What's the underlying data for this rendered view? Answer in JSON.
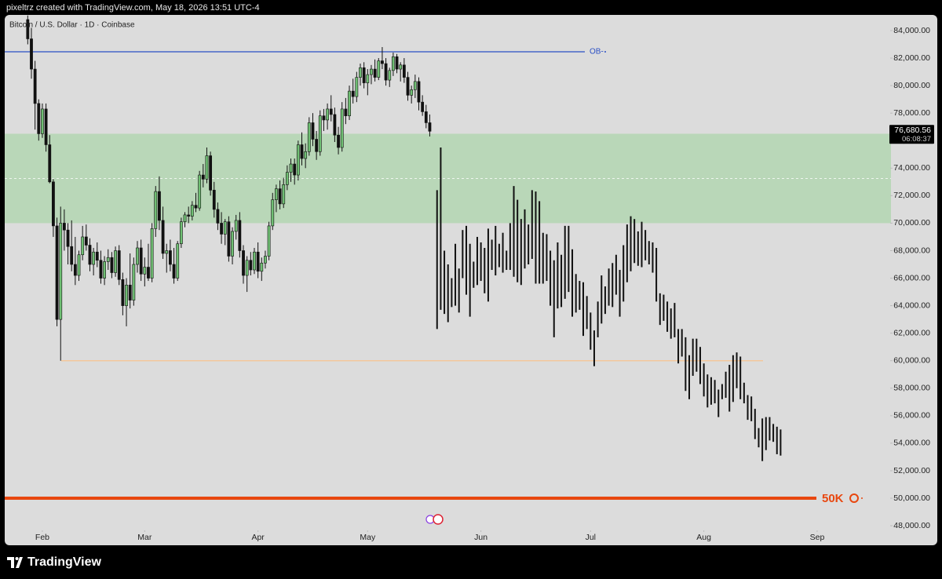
{
  "header": {
    "credit": "pixeltrz created with TradingView.com, May 18, 2026 13:51 UTC-4"
  },
  "chart_data": {
    "type": "candlestick",
    "title": "Bitcoin / U.S. Dollar · 1D · Coinbase",
    "up_color": "#6fbf73",
    "down_color": "#111111",
    "x": [
      -4,
      -3,
      -2,
      -1,
      0,
      1,
      2,
      3,
      4,
      5,
      6,
      7,
      8,
      9,
      10,
      11,
      12,
      13,
      14,
      15,
      16,
      17,
      18,
      19,
      20,
      21,
      22,
      23,
      24,
      25,
      26,
      27,
      28,
      29,
      30,
      31,
      32,
      33,
      34,
      35,
      36,
      37,
      38,
      39,
      40,
      41,
      42,
      43,
      44,
      45,
      46,
      47,
      48,
      49,
      50,
      51,
      52,
      53,
      54,
      55,
      56,
      57,
      58,
      59,
      60,
      61,
      62,
      63,
      64,
      65,
      66,
      67,
      68,
      69,
      70,
      71,
      72,
      73,
      74,
      75,
      76,
      77,
      78,
      79,
      80,
      81,
      82,
      83,
      84,
      85,
      86,
      87,
      88,
      89,
      90,
      91,
      92,
      93,
      94,
      95,
      96,
      97,
      98,
      99,
      100,
      101,
      102,
      103,
      104,
      105,
      106
    ],
    "open": [
      84800,
      83400,
      81200,
      78700,
      76500,
      78300,
      75700,
      73000,
      69800,
      63000,
      70000,
      69500,
      68300,
      67000,
      66200,
      67700,
      69000,
      68400,
      67000,
      67900,
      67300,
      66000,
      67200,
      67500,
      66400,
      68000,
      65900,
      64000,
      65500,
      64400,
      67000,
      68200,
      66300,
      66800,
      66000,
      69600,
      72300,
      70200,
      67800,
      68000,
      67000,
      66000,
      68500,
      70100,
      70600,
      70500,
      71300,
      71100,
      73500,
      73200,
      74900,
      72400,
      71000,
      70000,
      69200,
      70100,
      67600,
      69400,
      70200,
      68000,
      66200,
      67300,
      66600,
      67900,
      66500,
      67100,
      67600,
      69800,
      71700,
      72500,
      71400,
      72800,
      73700,
      74300,
      73500,
      75700,
      74700,
      75200,
      77300,
      76100,
      75200,
      77800,
      77500,
      78300,
      77900,
      76400,
      75500,
      78300,
      77800,
      79600,
      79200,
      80600,
      81300,
      80200,
      80800,
      81200,
      80600,
      81800,
      81600,
      80400,
      81100,
      82100,
      81200,
      81500,
      80600,
      79300,
      79700,
      80300,
      78800,
      78100,
      77300
    ],
    "high": [
      85100,
      84200,
      81800,
      79000,
      78700,
      78700,
      76400,
      73200,
      70400,
      71200,
      71000,
      70000,
      70200,
      69000,
      68000,
      69800,
      69900,
      68900,
      68200,
      68600,
      68000,
      67600,
      68100,
      67900,
      68300,
      68400,
      66400,
      66000,
      67800,
      67500,
      68700,
      68800,
      67500,
      68500,
      70000,
      72700,
      73400,
      71200,
      68500,
      68800,
      68200,
      68700,
      70400,
      70800,
      71200,
      71600,
      72200,
      73800,
      74300,
      75500,
      75200,
      73000,
      71500,
      70800,
      70300,
      70500,
      69700,
      70600,
      70800,
      68400,
      67600,
      67900,
      68200,
      68600,
      67500,
      68000,
      70100,
      72200,
      72800,
      73100,
      73300,
      74200,
      74700,
      74700,
      76000,
      76600,
      75800,
      77700,
      78000,
      76700,
      78200,
      78300,
      78700,
      79300,
      78400,
      77000,
      78800,
      79100,
      80000,
      80500,
      81000,
      81600,
      81700,
      81200,
      81500,
      81900,
      82000,
      82800,
      82000,
      81300,
      82400,
      82300,
      81700,
      82000,
      81000,
      80000,
      80800,
      80600,
      79300,
      78600,
      77900
    ],
    "low": [
      83000,
      80500,
      76800,
      76000,
      76200,
      75200,
      72900,
      69000,
      62500,
      60000,
      68000,
      67000,
      66500,
      65500,
      65800,
      67300,
      68000,
      66500,
      66200,
      66800,
      65600,
      65500,
      66600,
      66000,
      66100,
      65500,
      63300,
      62500,
      63800,
      64000,
      66400,
      65800,
      65400,
      65800,
      65700,
      69000,
      69500,
      67400,
      66400,
      66500,
      65600,
      65800,
      68200,
      69700,
      70000,
      70200,
      70800,
      70900,
      72600,
      72900,
      72000,
      70400,
      69500,
      68500,
      68400,
      67200,
      67000,
      68800,
      67500,
      65600,
      65000,
      66200,
      66300,
      66000,
      65800,
      66700,
      67300,
      69500,
      70800,
      71000,
      71100,
      72400,
      73000,
      72800,
      73100,
      74200,
      74000,
      74900,
      75600,
      74600,
      74900,
      76700,
      76800,
      77400,
      75900,
      75000,
      75200,
      77200,
      77500,
      78700,
      78800,
      80000,
      79800,
      79300,
      80100,
      80300,
      80400,
      81200,
      80000,
      79900,
      80700,
      80900,
      80300,
      80200,
      78900,
      78700,
      79100,
      78200,
      77800,
      76900,
      76300
    ],
    "close": [
      83400,
      81200,
      78700,
      76500,
      78300,
      75700,
      73000,
      69800,
      63000,
      70000,
      69500,
      68300,
      67000,
      66200,
      67700,
      69000,
      68400,
      67000,
      67900,
      67300,
      66000,
      67200,
      67500,
      66400,
      68000,
      65900,
      64000,
      65500,
      64400,
      67000,
      68200,
      66300,
      66800,
      66000,
      69600,
      72300,
      70200,
      67800,
      68000,
      67000,
      66000,
      68500,
      70100,
      70600,
      70500,
      71300,
      71100,
      73500,
      73200,
      74900,
      72400,
      71000,
      70000,
      69200,
      70100,
      67600,
      69400,
      70200,
      68000,
      66200,
      67300,
      66600,
      67900,
      66500,
      67100,
      67600,
      69800,
      71700,
      72500,
      71400,
      72800,
      73700,
      74300,
      73500,
      75700,
      74700,
      75200,
      77300,
      76100,
      75200,
      77800,
      77500,
      78300,
      77900,
      76400,
      75500,
      78300,
      77800,
      79600,
      79200,
      80600,
      81300,
      80200,
      80800,
      81200,
      80600,
      81800,
      81600,
      80400,
      81100,
      82100,
      81200,
      81500,
      80600,
      79300,
      79700,
      80300,
      78800,
      78100,
      77300,
      76680.56
    ],
    "projection": {
      "color": "#111111",
      "x": [
        108,
        109,
        110,
        111,
        112,
        113,
        114,
        115,
        116,
        117,
        118,
        119,
        120,
        121,
        122,
        123,
        124,
        125,
        126,
        127,
        128,
        129,
        130,
        131,
        132,
        133,
        134,
        135,
        136,
        137,
        138,
        139,
        140,
        141,
        142,
        143,
        144,
        145,
        146,
        147,
        148,
        149,
        150,
        151,
        152,
        153,
        154,
        155,
        156,
        157,
        158,
        159,
        160,
        161,
        162,
        163,
        164,
        165,
        166,
        167,
        168,
        169,
        170,
        171,
        172,
        173,
        174,
        175,
        176,
        177,
        178,
        179,
        180,
        181,
        182,
        183,
        184,
        185,
        186,
        187,
        188,
        189,
        190,
        191,
        192,
        193,
        194,
        195,
        196,
        197,
        198,
        199,
        200,
        201,
        202
      ],
      "high": [
        72400,
        75500,
        68000,
        67000,
        66000,
        68500,
        66700,
        69500,
        69800,
        68500,
        67200,
        69000,
        68600,
        68200,
        69600,
        68800,
        69800,
        68500,
        69300,
        68000,
        70000,
        72700,
        71700,
        70300,
        71000,
        69900,
        72400,
        72300,
        71600,
        69300,
        69200,
        68000,
        67300,
        68600,
        67700,
        69800,
        69800,
        68100,
        66300,
        65800,
        65700,
        64700,
        63500,
        62200,
        64300,
        66200,
        65400,
        66700,
        67100,
        67700,
        66600,
        68400,
        69900,
        70500,
        70300,
        69400,
        70100,
        69500,
        68700,
        68600,
        68200,
        64900,
        64800,
        64300,
        63800,
        64200,
        62300,
        62300,
        61700,
        60400,
        61600,
        61600,
        61000,
        59800,
        59000,
        58800,
        58600,
        57900,
        58300,
        59200,
        59700,
        60400,
        60600,
        60300,
        58400,
        57500,
        57400,
        56500,
        55100,
        55800,
        55900,
        55900,
        55400,
        55200,
        55000
      ],
      "low": [
        62300,
        63700,
        63400,
        62800,
        63900,
        64000,
        63500,
        66000,
        64800,
        63200,
        65300,
        65500,
        65800,
        64900,
        64300,
        66600,
        66200,
        66800,
        66400,
        66600,
        66600,
        66100,
        65700,
        65500,
        66700,
        67000,
        67400,
        65600,
        65600,
        65600,
        65800,
        64000,
        61700,
        63800,
        63900,
        64500,
        65000,
        63200,
        63500,
        63700,
        61800,
        62300,
        60800,
        59600,
        61700,
        62700,
        63400,
        64000,
        63900,
        64800,
        63200,
        64300,
        65700,
        66500,
        67100,
        66900,
        66800,
        67300,
        67000,
        66400,
        64300,
        62600,
        62900,
        62100,
        61600,
        61700,
        59800,
        60300,
        57800,
        57200,
        58900,
        59200,
        58300,
        57400,
        56600,
        56800,
        56900,
        55900,
        57200,
        57300,
        56300,
        57000,
        58000,
        57200,
        56900,
        55700,
        55600,
        54300,
        53700,
        52700,
        53500,
        54200,
        54100,
        53200,
        53100
      ]
    },
    "zone": {
      "low": 70000,
      "high": 76500,
      "color": "#b9d7b8"
    },
    "levels": [
      {
        "value": 82460,
        "label": "OB-",
        "color": "#2a4fc4"
      },
      {
        "value": 60000,
        "color": "#f3c79c"
      },
      {
        "value": 50000,
        "label": "50K",
        "color": "#e8470f"
      }
    ],
    "last_price": {
      "value": 76680.56,
      "label": "76,680.56",
      "countdown": "06:08:37"
    },
    "xlim": [
      -10.3,
      232.2
    ],
    "xticks": [
      {
        "value": 0,
        "label": "Feb"
      },
      {
        "value": 28,
        "label": "Mar"
      },
      {
        "value": 59,
        "label": "Apr"
      },
      {
        "value": 89,
        "label": "May"
      },
      {
        "value": 120,
        "label": "Jun"
      },
      {
        "value": 150,
        "label": "Jul"
      },
      {
        "value": 181,
        "label": "Aug"
      },
      {
        "value": 212,
        "label": "Sep"
      }
    ],
    "ylim": [
      46580,
      85140
    ],
    "yticks": [
      {
        "value": 48000,
        "label": "48,000.00"
      },
      {
        "value": 50000,
        "label": "50,000.00"
      },
      {
        "value": 52000,
        "label": "52,000.00"
      },
      {
        "value": 54000,
        "label": "54,000.00"
      },
      {
        "value": 56000,
        "label": "56,000.00"
      },
      {
        "value": 58000,
        "label": "58,000.00"
      },
      {
        "value": 60000,
        "label": "60,000.00"
      },
      {
        "value": 62000,
        "label": "62,000.00"
      },
      {
        "value": 64000,
        "label": "64,000.00"
      },
      {
        "value": 66000,
        "label": "66,000.00"
      },
      {
        "value": 68000,
        "label": "68,000.00"
      },
      {
        "value": 70000,
        "label": "70,000.00"
      },
      {
        "value": 72000,
        "label": "72,000.00"
      },
      {
        "value": 74000,
        "label": "74,000.00"
      },
      {
        "value": 76000,
        "label": "76,000.00"
      },
      {
        "value": 78000,
        "label": "78,000.00"
      },
      {
        "value": 80000,
        "label": "80,000.00"
      },
      {
        "value": 82000,
        "label": "82,000.00"
      },
      {
        "value": 84000,
        "label": "84,000.00"
      }
    ]
  },
  "footer": {
    "brand": "TradingView"
  }
}
